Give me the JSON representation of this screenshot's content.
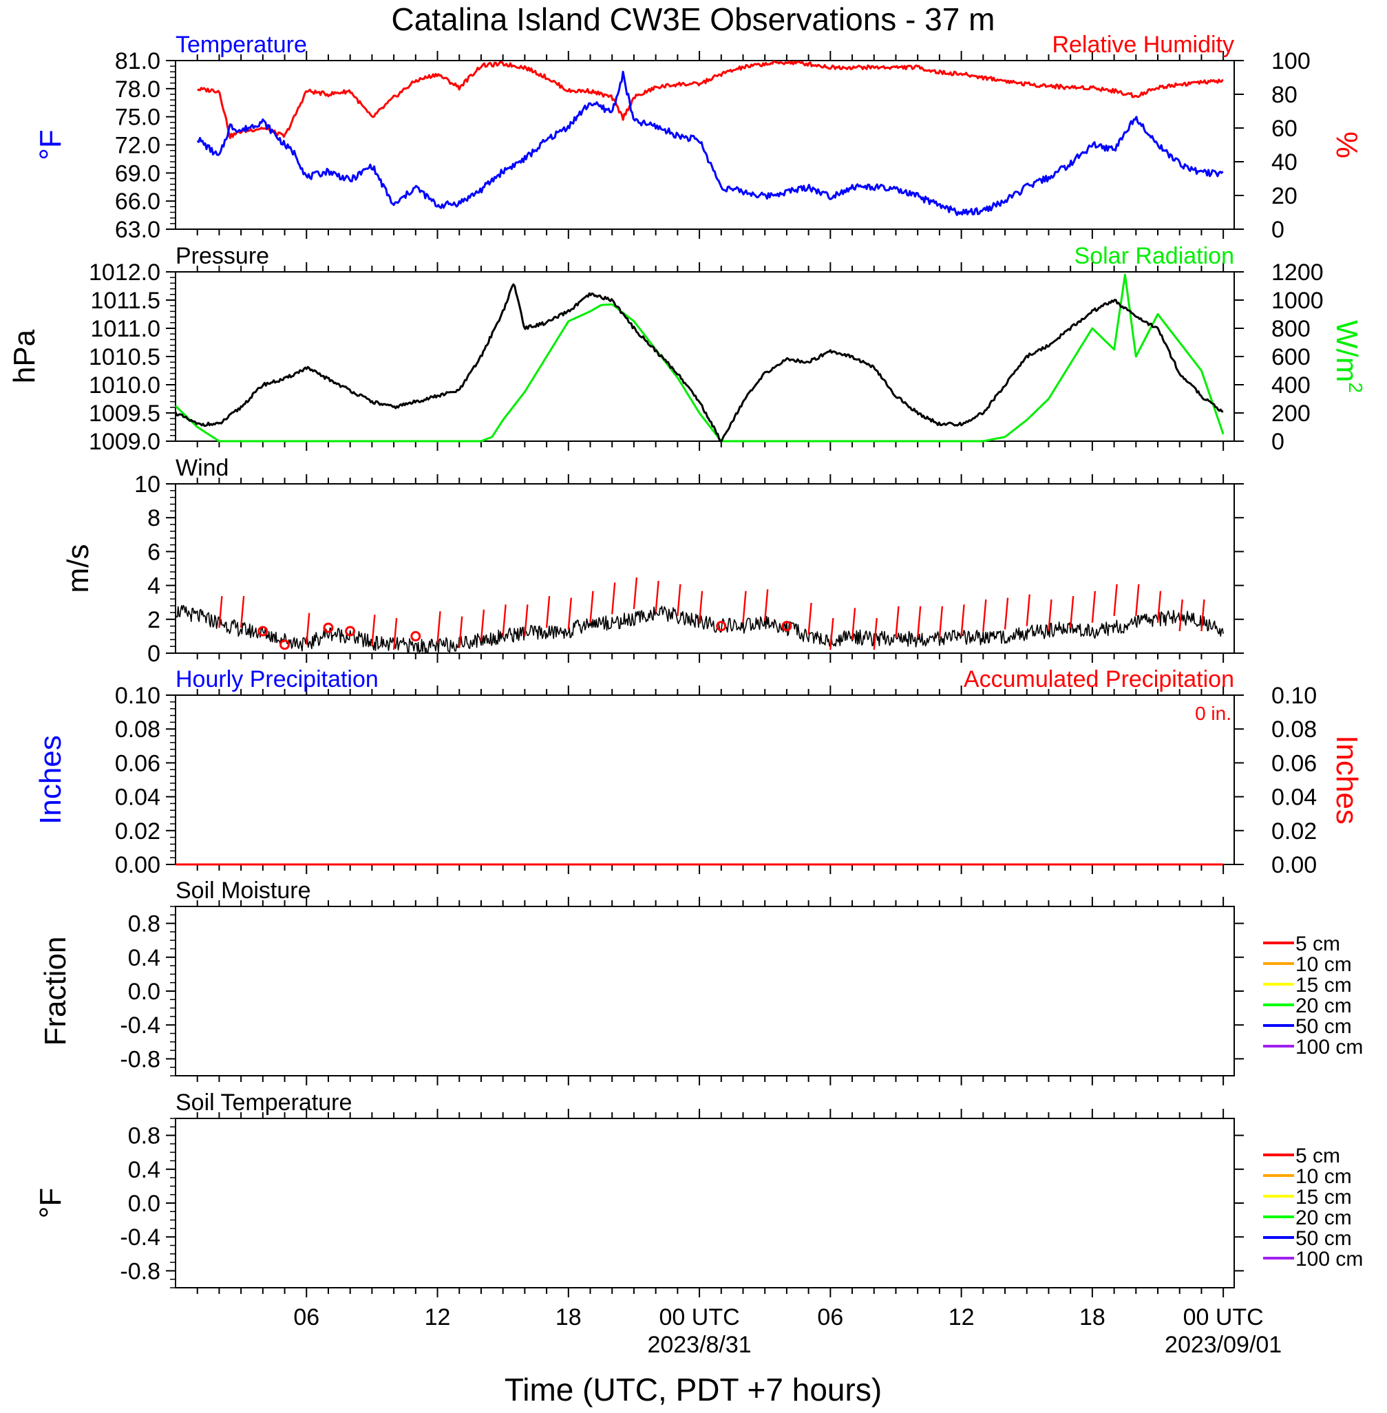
{
  "title": "Catalina Island CW3E Observations - 37 m",
  "xlabel": "Time (UTC, PDT +7 hours)",
  "x_ticks": [
    {
      "h": 6,
      "label": "06"
    },
    {
      "h": 12,
      "label": "12"
    },
    {
      "h": 18,
      "label": "18"
    },
    {
      "h": 24,
      "label": "00 UTC",
      "date": "2023/8/31"
    },
    {
      "h": 30,
      "label": "06"
    },
    {
      "h": 36,
      "label": "12"
    },
    {
      "h": 42,
      "label": "18"
    },
    {
      "h": 48,
      "label": "00 UTC",
      "date": "2023/09/01"
    }
  ],
  "colors": {
    "blue": "#0000ff",
    "red": "#ff0000",
    "green": "#00ee00",
    "black": "#000000"
  },
  "chart_data": [
    {
      "type": "line",
      "panel": "temperature_humidity",
      "title_left": "Temperature",
      "title_right": "Relative Humidity",
      "ylabel_left": "°F",
      "ylabel_right": "%",
      "ylim_left": [
        63,
        81
      ],
      "yticks_left": [
        "63.0",
        "66.0",
        "69.0",
        "72.0",
        "75.0",
        "78.0",
        "81.0"
      ],
      "ylim_right": [
        0,
        100
      ],
      "yticks_right": [
        "0",
        "20",
        "40",
        "60",
        "80",
        "100"
      ],
      "x_hours": [
        1,
        2,
        2.5,
        3,
        4,
        5,
        5.5,
        6,
        7,
        8,
        9,
        10,
        11,
        12,
        13,
        14,
        15,
        16,
        17,
        18,
        19,
        20,
        20.5,
        21,
        22,
        23,
        24,
        25,
        26,
        27,
        28,
        29,
        30,
        31,
        32,
        33,
        34,
        35,
        36,
        37,
        38,
        39,
        40,
        41,
        42,
        43,
        44,
        45,
        46,
        47,
        48
      ],
      "series": [
        {
          "name": "Temperature",
          "axis": "left",
          "color": "#0000ff",
          "values": [
            72.7,
            70.7,
            74,
            73.5,
            74.5,
            72,
            71,
            68.5,
            69.2,
            68.2,
            69.8,
            65.5,
            67.5,
            65.5,
            65.8,
            67.2,
            69.2,
            70.5,
            72.5,
            74,
            76.5,
            75.5,
            79.5,
            74.5,
            74,
            73,
            72.5,
            67.5,
            67,
            66.5,
            67,
            67.5,
            66.5,
            67.5,
            67.5,
            67.2,
            66.5,
            65.5,
            64.7,
            65,
            66,
            67.5,
            68.5,
            70,
            72,
            71.5,
            75,
            72,
            70,
            69,
            69
          ]
        },
        {
          "name": "Relative Humidity",
          "axis": "right",
          "color": "#ff0000",
          "values": [
            83,
            82,
            55,
            58,
            60,
            55,
            68,
            82,
            80,
            82,
            66,
            78,
            88,
            92,
            84,
            97,
            98,
            96,
            90,
            82,
            82,
            78,
            66,
            78,
            84,
            86,
            86,
            92,
            96,
            98,
            99,
            98,
            96,
            96,
            96,
            96,
            96,
            93,
            92,
            90,
            88,
            86,
            85,
            84,
            84,
            82,
            79,
            84,
            86,
            87,
            88
          ]
        }
      ]
    },
    {
      "type": "line",
      "panel": "pressure_solar",
      "title_left": "Pressure",
      "title_right": "Solar Radiation",
      "ylabel_left": "hPa",
      "ylabel_right": "W/m",
      "ylabel_right_sup": "2",
      "ylim_left": [
        1009,
        1012
      ],
      "yticks_left": [
        "1009.0",
        "1009.5",
        "1010.0",
        "1010.5",
        "1011.0",
        "1011.5",
        "1012.0"
      ],
      "ylim_right": [
        0,
        1200
      ],
      "yticks_right": [
        "0",
        "200",
        "400",
        "600",
        "800",
        "1000",
        "1200"
      ],
      "series": [
        {
          "name": "Pressure",
          "axis": "left",
          "color": "#000000",
          "x_hours": [
            0,
            1,
            2,
            3,
            4,
            5,
            6,
            7,
            8,
            9,
            10,
            11,
            12,
            13,
            14,
            15,
            15.5,
            16,
            17,
            18,
            19,
            20,
            21,
            22,
            23,
            24,
            25,
            26,
            27,
            28,
            29,
            30,
            31,
            32,
            33,
            34,
            35,
            36,
            37,
            38,
            39,
            40,
            41,
            42,
            43,
            44,
            45,
            46,
            47,
            48
          ],
          "values": [
            1009.5,
            1009.3,
            1009.3,
            1009.6,
            1010,
            1010.1,
            1010.3,
            1010.1,
            1009.9,
            1009.7,
            1009.6,
            1009.7,
            1009.8,
            1009.9,
            1010.5,
            1011.3,
            1011.8,
            1011,
            1011.1,
            1011.3,
            1011.6,
            1011.5,
            1011,
            1010.6,
            1010.2,
            1009.7,
            1009,
            1009.7,
            1010.2,
            1010.45,
            1010.4,
            1010.6,
            1010.5,
            1010.3,
            1009.8,
            1009.5,
            1009.3,
            1009.3,
            1009.5,
            1010,
            1010.5,
            1010.7,
            1011,
            1011.3,
            1011.5,
            1011.2,
            1011,
            1010.2,
            1009.8,
            1009.5
          ]
        },
        {
          "name": "Solar Radiation",
          "axis": "right",
          "color": "#00ee00",
          "x_hours": [
            0,
            1,
            2,
            3,
            4,
            5,
            6,
            7,
            8,
            9,
            10,
            11,
            12,
            13,
            14,
            14.5,
            15,
            16,
            17,
            18,
            19,
            19.5,
            20,
            21,
            22,
            23,
            24,
            25,
            26,
            27,
            28,
            29,
            30,
            31,
            32,
            33,
            34,
            35,
            36,
            37,
            38,
            39,
            40,
            41,
            42,
            43,
            43.5,
            44,
            45,
            46,
            47,
            48
          ],
          "values": [
            250,
            100,
            0,
            0,
            0,
            0,
            0,
            0,
            0,
            0,
            0,
            0,
            0,
            0,
            0,
            30,
            150,
            350,
            600,
            850,
            920,
            965,
            970,
            850,
            650,
            450,
            200,
            0,
            0,
            0,
            0,
            0,
            0,
            0,
            0,
            0,
            0,
            0,
            0,
            0,
            30,
            150,
            300,
            550,
            800,
            650,
            1180,
            600,
            900,
            700,
            500,
            50
          ]
        }
      ]
    },
    {
      "type": "line",
      "panel": "wind",
      "title_left": "Wind",
      "ylabel_left": "m/s",
      "ylim_left": [
        0,
        10
      ],
      "yticks_left": [
        "0",
        "2",
        "4",
        "6",
        "8",
        "10"
      ],
      "series": [
        {
          "name": "Wind",
          "color": "#000000",
          "x_hours": [
            0,
            1,
            2,
            3,
            4,
            5,
            6,
            7,
            8,
            9,
            10,
            11,
            12,
            13,
            14,
            15,
            16,
            17,
            18,
            19,
            20,
            21,
            22,
            23,
            24,
            25,
            26,
            27,
            28,
            29,
            30,
            31,
            32,
            33,
            34,
            35,
            36,
            37,
            38,
            39,
            40,
            41,
            42,
            43,
            44,
            45,
            46,
            47,
            48
          ],
          "values": [
            2.5,
            2.2,
            1.8,
            1.4,
            1.2,
            0.8,
            0.5,
            1.2,
            1.0,
            0.6,
            0.5,
            0.4,
            0.4,
            0.6,
            0.8,
            1.0,
            1.2,
            1.2,
            1.3,
            1.8,
            1.8,
            2.0,
            2.4,
            2.2,
            1.8,
            1.6,
            1.6,
            1.8,
            1.5,
            1.0,
            0.7,
            1.0,
            0.8,
            0.9,
            0.8,
            0.9,
            0.9,
            0.9,
            1.0,
            1.2,
            1.3,
            1.5,
            1.3,
            1.5,
            1.8,
            2.0,
            2.2,
            1.8,
            1.3
          ]
        },
        {
          "name": "Wind barbs",
          "color": "#ff0000",
          "x_hours": [
            2,
            3,
            4,
            5,
            6,
            7,
            8,
            9,
            10,
            11,
            12,
            13,
            14,
            15,
            16,
            17,
            18,
            19,
            20,
            21,
            22,
            23,
            24,
            25,
            26,
            27,
            28,
            29,
            30,
            31,
            32,
            33,
            34,
            35,
            36,
            37,
            38,
            39,
            40,
            41,
            42,
            43,
            44,
            45,
            46,
            47
          ],
          "values": [
            1.5,
            1.5,
            1.3,
            0.5,
            0.5,
            1.5,
            1.3,
            0.4,
            0.2,
            1.0,
            0.6,
            0.3,
            0.7,
            1.0,
            1.0,
            1.5,
            1.4,
            1.8,
            2.3,
            2.6,
            2.4,
            2.2,
            1.8,
            1.6,
            1.8,
            1.9,
            1.6,
            1.1,
            0.2,
            0.8,
            0.2,
            0.9,
            0.9,
            0.9,
            1.0,
            1.3,
            1.4,
            1.6,
            1.3,
            1.5,
            1.8,
            2.2,
            2.2,
            1.8,
            1.3,
            1.3
          ],
          "calm_circles_hours": [
            4,
            5,
            7,
            8,
            11,
            25,
            28
          ]
        }
      ]
    },
    {
      "type": "line",
      "panel": "precipitation",
      "title_left": "Hourly Precipitation",
      "title_right": "Accumulated Precipitation",
      "annotation": "0 in.",
      "ylabel_left": "Inches",
      "ylabel_right": "Inches",
      "ylim_left": [
        0,
        0.1
      ],
      "yticks_left": [
        "0.00",
        "0.02",
        "0.04",
        "0.06",
        "0.08",
        "0.10"
      ],
      "ylim_right": [
        0,
        0.1
      ],
      "yticks_right": [
        "0.00",
        "0.02",
        "0.04",
        "0.06",
        "0.08",
        "0.10"
      ],
      "series": [
        {
          "name": "Hourly Precipitation",
          "axis": "left",
          "color": "#0000ff",
          "x_hours": [
            0,
            48
          ],
          "values": [
            0,
            0
          ]
        },
        {
          "name": "Accumulated Precipitation",
          "axis": "right",
          "color": "#ff0000",
          "x_hours": [
            0,
            48
          ],
          "values": [
            0,
            0
          ]
        }
      ]
    },
    {
      "type": "line",
      "panel": "soil_moisture",
      "title_left": "Soil Moisture",
      "ylabel_left": "Fraction",
      "ylim_left": [
        -1,
        1
      ],
      "yticks_left": [
        "-0.8",
        "-0.4",
        "0.0",
        "0.4",
        "0.8"
      ],
      "legend": [
        {
          "name": "5 cm",
          "color": "#ff0000"
        },
        {
          "name": "10 cm",
          "color": "#ffa500"
        },
        {
          "name": "15 cm",
          "color": "#ffff00"
        },
        {
          "name": "20 cm",
          "color": "#00ff00"
        },
        {
          "name": "50 cm",
          "color": "#0000ff"
        },
        {
          "name": "100 cm",
          "color": "#a020f0"
        }
      ]
    },
    {
      "type": "line",
      "panel": "soil_temperature",
      "title_left": "Soil Temperature",
      "ylabel_left": "°F",
      "ylim_left": [
        -1,
        1
      ],
      "yticks_left": [
        "-0.8",
        "-0.4",
        "0.0",
        "0.4",
        "0.8"
      ],
      "legend": [
        {
          "name": "5 cm",
          "color": "#ff0000"
        },
        {
          "name": "10 cm",
          "color": "#ffa500"
        },
        {
          "name": "15 cm",
          "color": "#ffff00"
        },
        {
          "name": "20 cm",
          "color": "#00ff00"
        },
        {
          "name": "50 cm",
          "color": "#0000ff"
        },
        {
          "name": "100 cm",
          "color": "#a020f0"
        }
      ]
    }
  ]
}
